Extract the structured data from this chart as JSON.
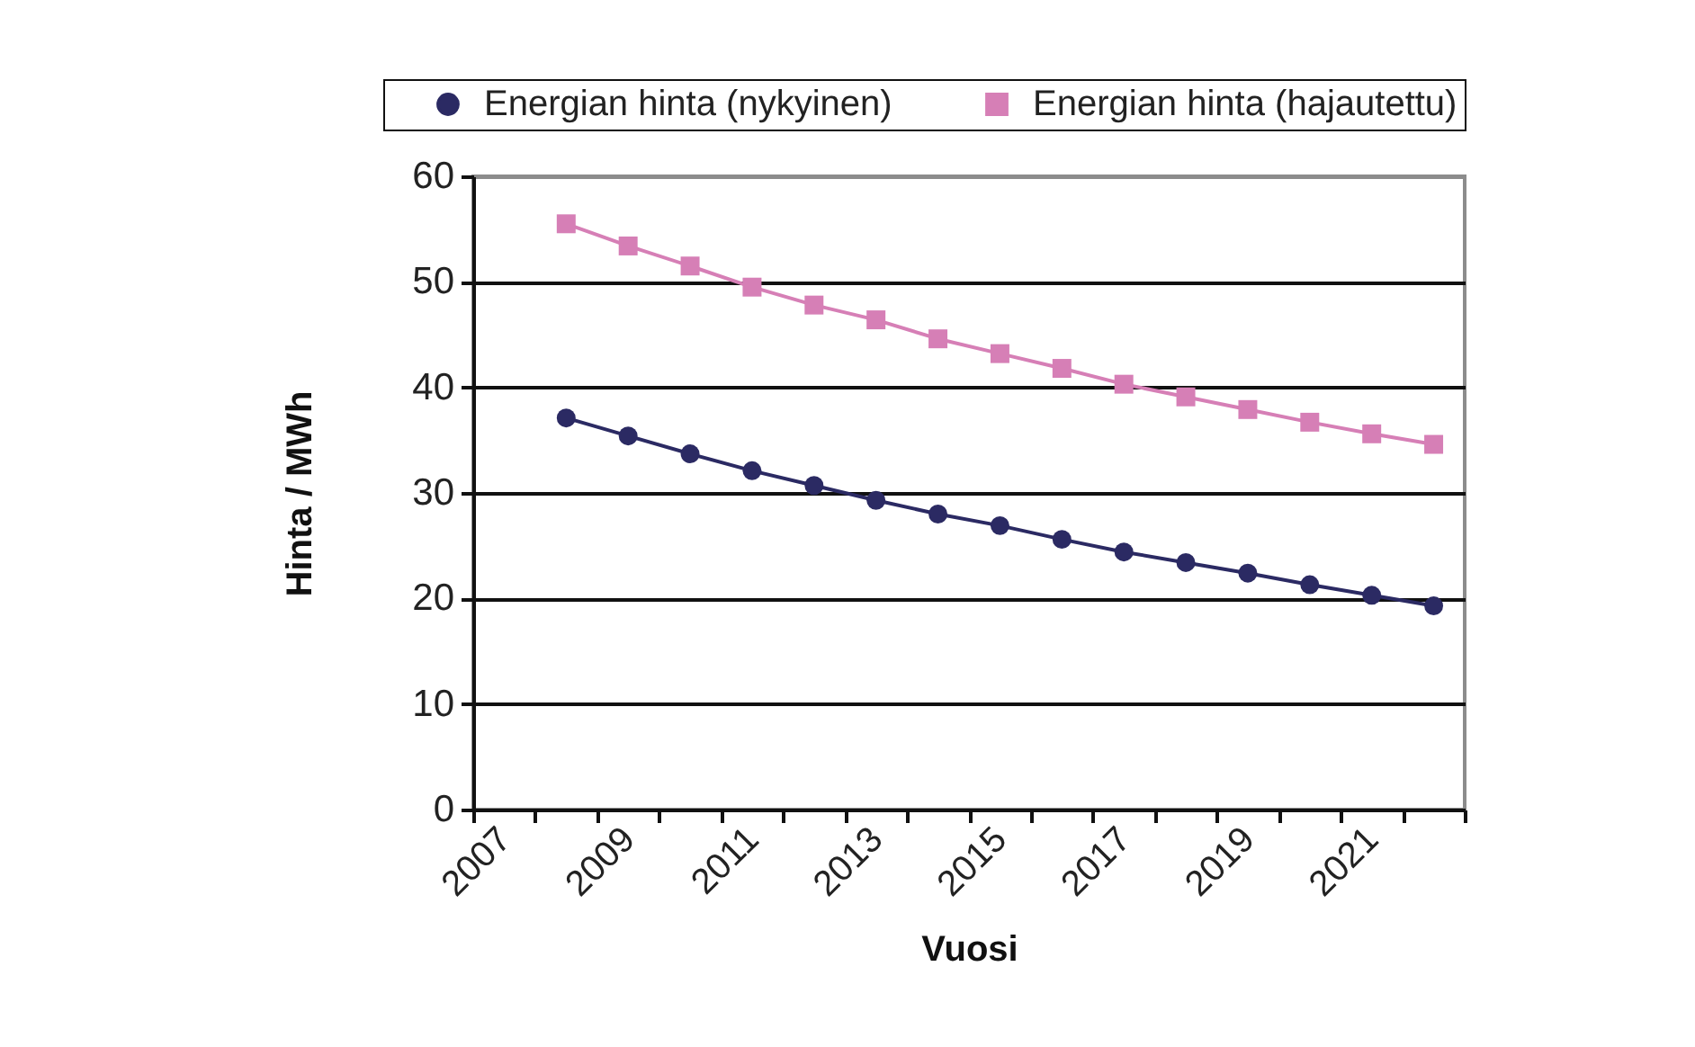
{
  "chart_data": {
    "type": "line",
    "xlabel": "Vuosi",
    "ylabel": "Hinta / MWh",
    "categories": [
      "2007",
      null,
      "2009",
      null,
      "2011",
      null,
      "2013",
      null,
      "2015",
      null,
      "2017",
      null,
      "2019",
      null,
      "2021",
      null
    ],
    "series": [
      {
        "name": "Energian hinta (nykyinen)",
        "color": "#2b2a63",
        "marker": "circle",
        "values": [
          null,
          37.1,
          35.4,
          33.7,
          32.1,
          30.7,
          29.3,
          28.0,
          26.9,
          25.6,
          24.4,
          23.4,
          22.4,
          21.3,
          20.3,
          19.3
        ]
      },
      {
        "name": "Energian hinta (hajautettu)",
        "color": "#d67fb6",
        "marker": "square",
        "values": [
          null,
          55.5,
          53.4,
          51.5,
          49.5,
          47.8,
          46.4,
          44.6,
          43.2,
          41.8,
          40.3,
          39.1,
          37.9,
          36.7,
          35.6,
          34.6
        ]
      }
    ],
    "ylim": [
      0,
      60
    ],
    "yticks": [
      0,
      10,
      20,
      30,
      40,
      50,
      60
    ],
    "grid": "y",
    "legend": "top",
    "line_style": "solid"
  }
}
